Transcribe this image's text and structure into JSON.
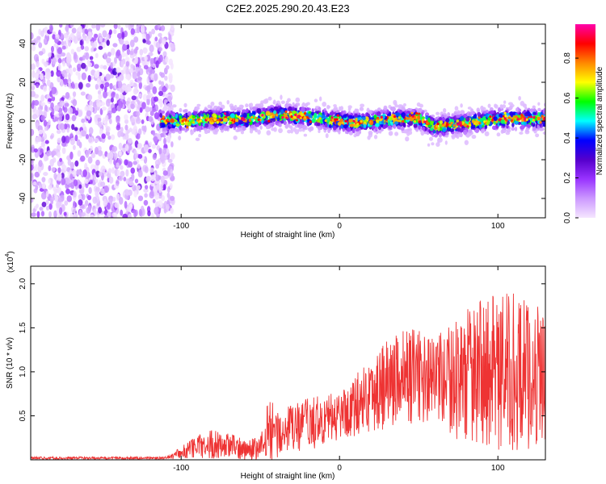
{
  "title": "C2E2.2025.290.20.43.E23",
  "chart_data": [
    {
      "type": "heatmap",
      "title": "C2E2.2025.290.20.43.E23",
      "xlabel": "Height of straight line (km)",
      "ylabel": "Frequency (Hz)",
      "xlim": [
        -195,
        130
      ],
      "ylim": [
        -50,
        50
      ],
      "xticks": [
        -100,
        0,
        100
      ],
      "xtick_labels": [
        "-100",
        "0",
        "100"
      ],
      "yticks": [
        -40,
        -20,
        0,
        20,
        40
      ],
      "ytick_labels": [
        "-40",
        "-20",
        "0",
        "20",
        "40"
      ],
      "colorbar": {
        "label": "Normalized spectral amplitude",
        "range": [
          0,
          0.97
        ],
        "ticks": [
          0.0,
          0.2,
          0.4,
          0.6,
          0.8
        ],
        "tick_labels": [
          "0.0",
          "0.2",
          "0.4",
          "0.6",
          "0.8"
        ],
        "colors": [
          "#f5e6ff",
          "#cc99ff",
          "#9933ff",
          "#5500cc",
          "#0000ff",
          "#00ffff",
          "#00ff00",
          "#ffff00",
          "#ff8800",
          "#ff0000",
          "#ff00aa"
        ]
      },
      "regions": [
        {
          "name": "noise",
          "x_range": [
            -195,
            -105
          ],
          "freq_range": [
            -50,
            50
          ],
          "amplitude": 0.05
        },
        {
          "name": "signal-band",
          "x_range": [
            -113,
            130
          ],
          "freq_center": 0,
          "freq_halfwidth": 6,
          "amplitude_peak": 0.95
        }
      ],
      "ridge_center_freq": {
        "x": [
          -113,
          -100,
          -80,
          -60,
          -40,
          -30,
          -20,
          -10,
          0,
          10,
          20,
          30,
          40,
          50,
          60,
          70,
          80,
          90,
          100,
          110,
          120,
          130
        ],
        "y": [
          0,
          0,
          1,
          1,
          3,
          3,
          2,
          1,
          0,
          -1,
          0,
          1,
          1,
          1,
          -3,
          -2,
          -1,
          0,
          1,
          1,
          1,
          1
        ]
      }
    },
    {
      "type": "line",
      "xlabel": "Height of straight line (km)",
      "ylabel": "SNR (10 * v/v)",
      "y_multiplier": "(x10",
      "y_multiplier_exp": "4",
      "xlim": [
        -195,
        130
      ],
      "ylim": [
        0,
        2.2
      ],
      "xticks": [
        -100,
        0,
        100
      ],
      "xtick_labels": [
        "-100",
        "0",
        "100"
      ],
      "yticks": [
        0.5,
        1.0,
        1.5,
        2.0
      ],
      "ytick_labels": [
        "0.5",
        "1.0",
        "1.5",
        "2.0"
      ],
      "series": [
        {
          "name": "SNR",
          "color": "#ee3333",
          "envelope_x": [
            -195,
            -110,
            -100,
            -90,
            -80,
            -70,
            -60,
            -50,
            -45,
            -40,
            -30,
            -20,
            -10,
            0,
            10,
            20,
            30,
            40,
            50,
            60,
            70,
            80,
            90,
            100,
            110,
            120,
            130
          ],
          "envelope_mean": [
            0.02,
            0.02,
            0.08,
            0.15,
            0.18,
            0.16,
            0.12,
            0.12,
            0.35,
            0.3,
            0.35,
            0.4,
            0.45,
            0.5,
            0.62,
            0.75,
            0.88,
            0.95,
            0.95,
            0.9,
            0.9,
            0.95,
            1.0,
            0.98,
            1.0,
            0.95,
            1.0
          ],
          "envelope_spread": [
            0.01,
            0.01,
            0.05,
            0.1,
            0.12,
            0.1,
            0.09,
            0.1,
            0.3,
            0.2,
            0.2,
            0.22,
            0.2,
            0.2,
            0.25,
            0.3,
            0.38,
            0.4,
            0.38,
            0.35,
            0.45,
            0.55,
            0.6,
            0.65,
            0.65,
            0.6,
            0.55
          ]
        }
      ]
    }
  ]
}
